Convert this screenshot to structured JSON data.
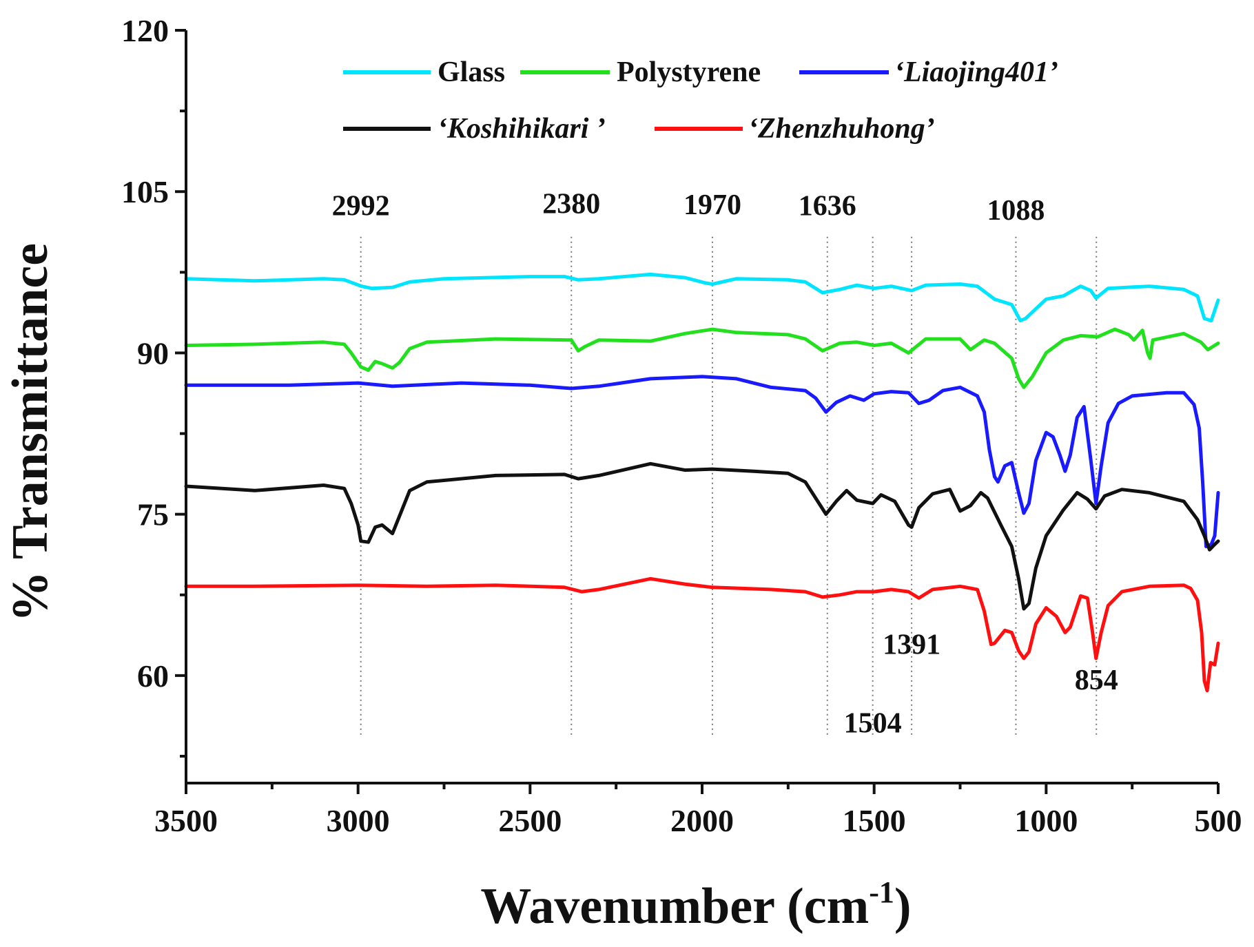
{
  "chart_data": {
    "type": "line",
    "xlabel": "Wavenumber (cm",
    "xlabel_sup": "-1",
    "xlabel_close": ")",
    "ylabel": "% Transmittance",
    "xlim": [
      3500,
      500
    ],
    "ylim": [
      50,
      120
    ],
    "x_ticks": [
      3500,
      3000,
      2500,
      2000,
      1500,
      1000,
      500
    ],
    "y_ticks": [
      60,
      75,
      90,
      105,
      120
    ],
    "grid": false,
    "legend_position": "top",
    "series": [
      {
        "name": "Glass",
        "color": "#00e5ff",
        "points": [
          [
            3500,
            96.9
          ],
          [
            3300,
            96.7
          ],
          [
            3100,
            96.9
          ],
          [
            3040,
            96.8
          ],
          [
            2990,
            96.2
          ],
          [
            2960,
            96.0
          ],
          [
            2900,
            96.1
          ],
          [
            2850,
            96.6
          ],
          [
            2750,
            96.9
          ],
          [
            2500,
            97.1
          ],
          [
            2400,
            97.1
          ],
          [
            2360,
            96.8
          ],
          [
            2300,
            96.9
          ],
          [
            2150,
            97.3
          ],
          [
            2050,
            97.0
          ],
          [
            1990,
            96.5
          ],
          [
            1970,
            96.4
          ],
          [
            1900,
            96.9
          ],
          [
            1750,
            96.8
          ],
          [
            1700,
            96.6
          ],
          [
            1650,
            95.6
          ],
          [
            1600,
            95.9
          ],
          [
            1550,
            96.3
          ],
          [
            1500,
            96.0
          ],
          [
            1450,
            96.2
          ],
          [
            1391,
            95.8
          ],
          [
            1350,
            96.3
          ],
          [
            1250,
            96.4
          ],
          [
            1200,
            96.2
          ],
          [
            1150,
            95.0
          ],
          [
            1100,
            94.5
          ],
          [
            1075,
            93.0
          ],
          [
            1060,
            93.2
          ],
          [
            1000,
            95.0
          ],
          [
            950,
            95.3
          ],
          [
            900,
            96.2
          ],
          [
            870,
            95.8
          ],
          [
            855,
            95.1
          ],
          [
            820,
            96.0
          ],
          [
            700,
            96.2
          ],
          [
            600,
            95.9
          ],
          [
            560,
            95.3
          ],
          [
            540,
            93.2
          ],
          [
            520,
            93.0
          ],
          [
            500,
            94.9
          ]
        ]
      },
      {
        "name": "Polystyrene",
        "color": "#22e01e",
        "points": [
          [
            3500,
            90.7
          ],
          [
            3300,
            90.8
          ],
          [
            3100,
            91.0
          ],
          [
            3040,
            90.8
          ],
          [
            3020,
            90.0
          ],
          [
            2992,
            88.7
          ],
          [
            2970,
            88.4
          ],
          [
            2950,
            89.2
          ],
          [
            2930,
            89.0
          ],
          [
            2900,
            88.6
          ],
          [
            2880,
            89.1
          ],
          [
            2850,
            90.4
          ],
          [
            2800,
            91.0
          ],
          [
            2600,
            91.3
          ],
          [
            2380,
            91.2
          ],
          [
            2360,
            90.2
          ],
          [
            2340,
            90.6
          ],
          [
            2300,
            91.2
          ],
          [
            2150,
            91.1
          ],
          [
            2050,
            91.8
          ],
          [
            1970,
            92.2
          ],
          [
            1900,
            91.9
          ],
          [
            1750,
            91.7
          ],
          [
            1700,
            91.3
          ],
          [
            1650,
            90.2
          ],
          [
            1600,
            90.9
          ],
          [
            1550,
            91.0
          ],
          [
            1500,
            90.7
          ],
          [
            1450,
            90.9
          ],
          [
            1400,
            90.0
          ],
          [
            1350,
            91.3
          ],
          [
            1250,
            91.3
          ],
          [
            1220,
            90.3
          ],
          [
            1180,
            91.2
          ],
          [
            1150,
            90.9
          ],
          [
            1100,
            89.5
          ],
          [
            1080,
            87.6
          ],
          [
            1065,
            86.8
          ],
          [
            1040,
            87.8
          ],
          [
            1000,
            90.0
          ],
          [
            950,
            91.2
          ],
          [
            900,
            91.6
          ],
          [
            850,
            91.5
          ],
          [
            800,
            92.2
          ],
          [
            760,
            91.7
          ],
          [
            745,
            91.2
          ],
          [
            720,
            92.1
          ],
          [
            705,
            90.0
          ],
          [
            698,
            89.5
          ],
          [
            690,
            91.2
          ],
          [
            600,
            91.8
          ],
          [
            550,
            91.0
          ],
          [
            530,
            90.3
          ],
          [
            500,
            90.9
          ]
        ]
      },
      {
        "name": "‘Liaojing401’",
        "color": "#1a1aff",
        "points": [
          [
            3500,
            87.0
          ],
          [
            3200,
            87.0
          ],
          [
            3000,
            87.2
          ],
          [
            2900,
            86.9
          ],
          [
            2700,
            87.2
          ],
          [
            2500,
            87.0
          ],
          [
            2380,
            86.7
          ],
          [
            2300,
            86.9
          ],
          [
            2150,
            87.6
          ],
          [
            2000,
            87.8
          ],
          [
            1900,
            87.6
          ],
          [
            1800,
            86.8
          ],
          [
            1700,
            86.5
          ],
          [
            1670,
            85.8
          ],
          [
            1640,
            84.5
          ],
          [
            1610,
            85.4
          ],
          [
            1570,
            86.0
          ],
          [
            1530,
            85.6
          ],
          [
            1500,
            86.2
          ],
          [
            1450,
            86.4
          ],
          [
            1400,
            86.3
          ],
          [
            1370,
            85.3
          ],
          [
            1340,
            85.6
          ],
          [
            1300,
            86.5
          ],
          [
            1250,
            86.8
          ],
          [
            1200,
            86.0
          ],
          [
            1180,
            84.5
          ],
          [
            1165,
            81.0
          ],
          [
            1150,
            78.5
          ],
          [
            1140,
            78.0
          ],
          [
            1120,
            79.5
          ],
          [
            1100,
            79.8
          ],
          [
            1080,
            77.0
          ],
          [
            1065,
            75.1
          ],
          [
            1050,
            76.0
          ],
          [
            1030,
            80.0
          ],
          [
            1000,
            82.6
          ],
          [
            980,
            82.2
          ],
          [
            960,
            80.5
          ],
          [
            945,
            79.0
          ],
          [
            930,
            80.5
          ],
          [
            910,
            84.0
          ],
          [
            890,
            85.0
          ],
          [
            870,
            80.0
          ],
          [
            855,
            76.0
          ],
          [
            840,
            79.5
          ],
          [
            820,
            83.5
          ],
          [
            790,
            85.3
          ],
          [
            750,
            86.0
          ],
          [
            650,
            86.3
          ],
          [
            600,
            86.3
          ],
          [
            570,
            85.2
          ],
          [
            555,
            83.0
          ],
          [
            545,
            78.0
          ],
          [
            535,
            72.0
          ],
          [
            520,
            72.2
          ],
          [
            510,
            73.0
          ],
          [
            500,
            77.0
          ]
        ]
      },
      {
        "name": "‘Koshihikari ’",
        "color": "#111111",
        "points": [
          [
            3500,
            77.6
          ],
          [
            3300,
            77.2
          ],
          [
            3100,
            77.7
          ],
          [
            3040,
            77.4
          ],
          [
            3020,
            76.0
          ],
          [
            3000,
            74.0
          ],
          [
            2992,
            72.5
          ],
          [
            2970,
            72.4
          ],
          [
            2950,
            73.8
          ],
          [
            2930,
            74.0
          ],
          [
            2900,
            73.2
          ],
          [
            2880,
            74.8
          ],
          [
            2850,
            77.2
          ],
          [
            2800,
            78.0
          ],
          [
            2600,
            78.6
          ],
          [
            2400,
            78.7
          ],
          [
            2360,
            78.3
          ],
          [
            2300,
            78.6
          ],
          [
            2150,
            79.7
          ],
          [
            2050,
            79.1
          ],
          [
            1970,
            79.2
          ],
          [
            1850,
            79.0
          ],
          [
            1750,
            78.8
          ],
          [
            1700,
            78.0
          ],
          [
            1660,
            76.0
          ],
          [
            1640,
            75.0
          ],
          [
            1610,
            76.2
          ],
          [
            1580,
            77.2
          ],
          [
            1550,
            76.3
          ],
          [
            1504,
            76.0
          ],
          [
            1480,
            76.8
          ],
          [
            1440,
            76.2
          ],
          [
            1400,
            74.0
          ],
          [
            1391,
            73.8
          ],
          [
            1370,
            75.6
          ],
          [
            1330,
            76.9
          ],
          [
            1280,
            77.3
          ],
          [
            1250,
            75.3
          ],
          [
            1220,
            75.8
          ],
          [
            1190,
            77.0
          ],
          [
            1170,
            76.5
          ],
          [
            1130,
            73.9
          ],
          [
            1100,
            72.0
          ],
          [
            1080,
            69.0
          ],
          [
            1065,
            66.2
          ],
          [
            1050,
            66.7
          ],
          [
            1030,
            70.0
          ],
          [
            1000,
            73.0
          ],
          [
            950,
            75.4
          ],
          [
            910,
            77.0
          ],
          [
            880,
            76.4
          ],
          [
            855,
            75.5
          ],
          [
            830,
            76.7
          ],
          [
            780,
            77.3
          ],
          [
            700,
            77.0
          ],
          [
            600,
            76.2
          ],
          [
            560,
            74.5
          ],
          [
            540,
            73.0
          ],
          [
            525,
            71.7
          ],
          [
            510,
            72.2
          ],
          [
            500,
            72.5
          ]
        ]
      },
      {
        "name": "‘Zhenzhuhong’",
        "color": "#ff1010",
        "points": [
          [
            3500,
            68.3
          ],
          [
            3300,
            68.3
          ],
          [
            3000,
            68.4
          ],
          [
            2800,
            68.3
          ],
          [
            2600,
            68.4
          ],
          [
            2400,
            68.2
          ],
          [
            2350,
            67.8
          ],
          [
            2300,
            68.0
          ],
          [
            2150,
            69.0
          ],
          [
            2050,
            68.5
          ],
          [
            1970,
            68.2
          ],
          [
            1800,
            68.0
          ],
          [
            1700,
            67.8
          ],
          [
            1650,
            67.3
          ],
          [
            1600,
            67.5
          ],
          [
            1550,
            67.8
          ],
          [
            1500,
            67.8
          ],
          [
            1450,
            68.0
          ],
          [
            1400,
            67.8
          ],
          [
            1370,
            67.2
          ],
          [
            1330,
            68.0
          ],
          [
            1250,
            68.3
          ],
          [
            1200,
            68.0
          ],
          [
            1180,
            66.0
          ],
          [
            1160,
            62.9
          ],
          [
            1150,
            63.0
          ],
          [
            1120,
            64.2
          ],
          [
            1100,
            64.0
          ],
          [
            1080,
            62.3
          ],
          [
            1065,
            61.6
          ],
          [
            1050,
            62.2
          ],
          [
            1030,
            64.8
          ],
          [
            1000,
            66.3
          ],
          [
            970,
            65.5
          ],
          [
            945,
            64.0
          ],
          [
            930,
            64.5
          ],
          [
            900,
            67.4
          ],
          [
            880,
            67.2
          ],
          [
            865,
            64.0
          ],
          [
            855,
            61.6
          ],
          [
            840,
            64.0
          ],
          [
            820,
            66.5
          ],
          [
            780,
            67.8
          ],
          [
            700,
            68.3
          ],
          [
            600,
            68.4
          ],
          [
            580,
            68.1
          ],
          [
            560,
            67.0
          ],
          [
            548,
            64.0
          ],
          [
            540,
            59.5
          ],
          [
            532,
            58.6
          ],
          [
            522,
            61.2
          ],
          [
            510,
            61.0
          ],
          [
            500,
            63.0
          ]
        ]
      }
    ],
    "peak_lines": [
      2992,
      2380,
      1970,
      1636,
      1504,
      1391,
      1088,
      854
    ],
    "annotations": [
      {
        "text": "2992",
        "x": 2992,
        "y": 102.8
      },
      {
        "text": "2380",
        "x": 2380,
        "y": 103.0
      },
      {
        "text": "1970",
        "x": 1970,
        "y": 102.9
      },
      {
        "text": "1636",
        "x": 1636,
        "y": 102.8
      },
      {
        "text": "1088",
        "x": 1088,
        "y": 102.4
      },
      {
        "text": "1391",
        "x": 1391,
        "y": 62.0
      },
      {
        "text": "854",
        "x": 854,
        "y": 58.7
      },
      {
        "text": "1504",
        "x": 1504,
        "y": 54.7
      }
    ]
  }
}
